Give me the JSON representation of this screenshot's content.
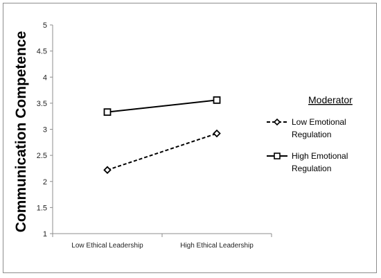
{
  "chart_data": {
    "type": "line",
    "categories": [
      "Low Ethical Leadership",
      "High Ethical Leadership"
    ],
    "ylabel": "Communication Competence",
    "xlabel": "",
    "ylim": [
      1,
      5
    ],
    "yticks": [
      "1",
      "1.5",
      "2",
      "2.5",
      "3",
      "3.5",
      "4",
      "4.5",
      "5"
    ],
    "grid": false,
    "legend": {
      "title": "Moderator",
      "position": "right"
    },
    "series": [
      {
        "name_lines": [
          "Low Emotional",
          "Regulation"
        ],
        "values": [
          2.22,
          2.92
        ],
        "style": "dashed",
        "marker": "diamond",
        "color": "#000000"
      },
      {
        "name_lines": [
          "High Emotional",
          "Regulation"
        ],
        "values": [
          3.33,
          3.56
        ],
        "style": "solid",
        "marker": "square",
        "color": "#000000"
      }
    ]
  }
}
